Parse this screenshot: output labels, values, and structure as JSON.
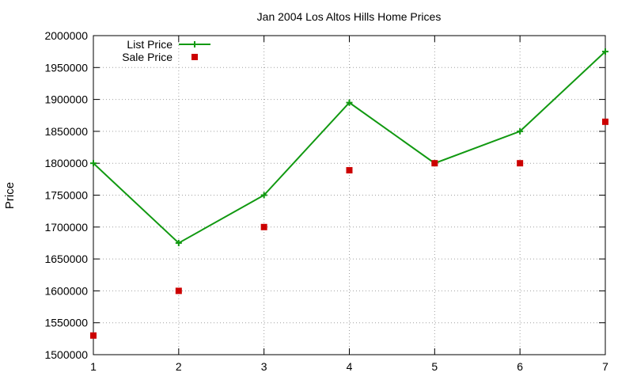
{
  "chart_data": {
    "type": "line",
    "title": "Jan 2004 Los Altos Hills Home Prices",
    "xlabel": "",
    "ylabel": "Price",
    "x": [
      1,
      2,
      3,
      4,
      5,
      6,
      7
    ],
    "xlim": [
      1,
      7
    ],
    "ylim": [
      1500000,
      2000000
    ],
    "xticks": [
      1,
      2,
      3,
      4,
      5,
      6,
      7
    ],
    "yticks": [
      1500000,
      1550000,
      1600000,
      1650000,
      1700000,
      1750000,
      1800000,
      1850000,
      1900000,
      1950000,
      2000000
    ],
    "grid": true,
    "legend_position": "top-left",
    "series": [
      {
        "name": "List Price",
        "style": "line-with-plus-markers",
        "color": "#119911",
        "values": [
          1800000,
          1675000,
          1750000,
          1895000,
          1800000,
          1850000,
          1975000
        ]
      },
      {
        "name": "Sale Price",
        "style": "square-markers",
        "color": "#cc0000",
        "values": [
          1530000,
          1600000,
          1700000,
          1789000,
          1800000,
          1800000,
          1865000
        ]
      }
    ]
  }
}
